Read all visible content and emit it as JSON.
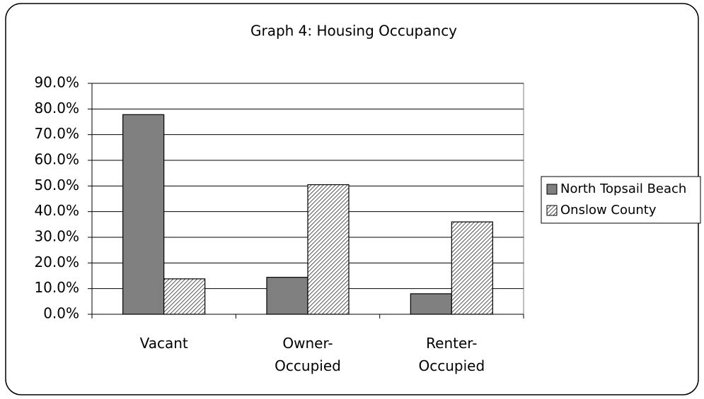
{
  "chart_data": {
    "type": "bar",
    "title": "Graph 4: Housing Occupancy",
    "categories": [
      "Vacant",
      "Owner-Occupied",
      "Renter-Occupied"
    ],
    "series": [
      {
        "name": "North Topsail Beach",
        "color": "#808080",
        "values": [
          77.8,
          14.4,
          8.0
        ]
      },
      {
        "name": "Onslow County",
        "color": "#c8c8c8",
        "pattern": "hatch",
        "values": [
          13.8,
          50.5,
          36.0
        ]
      }
    ],
    "ylim": [
      0,
      90
    ],
    "yticks": [
      {
        "value": 0,
        "label": "0.0%"
      },
      {
        "value": 10,
        "label": "10.0%"
      },
      {
        "value": 20,
        "label": "20.0%"
      },
      {
        "value": 30,
        "label": "30.0%"
      },
      {
        "value": 40,
        "label": "40.0%"
      },
      {
        "value": 50,
        "label": "50.0%"
      },
      {
        "value": 60,
        "label": "60.0%"
      },
      {
        "value": 70,
        "label": "70.0%"
      },
      {
        "value": 80,
        "label": "80.0%"
      },
      {
        "value": 90,
        "label": "90.0%"
      }
    ],
    "grid": true,
    "legend": "right"
  }
}
